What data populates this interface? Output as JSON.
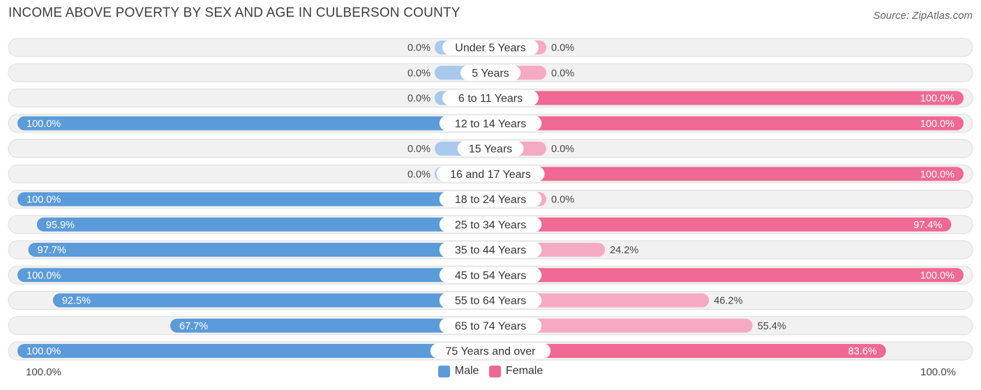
{
  "header": {
    "title": "INCOME ABOVE POVERTY BY SEX AND AGE IN CULBERSON COUNTY",
    "source": "Source: ZipAtlas.com"
  },
  "colors": {
    "male_strong": "#5b9bd9",
    "male_light": "#a9c9ec",
    "female_strong": "#f06894",
    "female_light": "#f6a9c3",
    "row_bg": "#f1f1f1",
    "row_border": "#dedede"
  },
  "chart_data": {
    "type": "bar",
    "orientation": "horizontal-diverging",
    "title": "INCOME ABOVE POVERTY BY SEX AND AGE IN CULBERSON COUNTY",
    "xlim": [
      -100,
      100
    ],
    "categories": [
      "Under 5 Years",
      "5 Years",
      "6 to 11 Years",
      "12 to 14 Years",
      "15 Years",
      "16 and 17 Years",
      "18 to 24 Years",
      "25 to 34 Years",
      "35 to 44 Years",
      "45 to 54 Years",
      "55 to 64 Years",
      "65 to 74 Years",
      "75 Years and over"
    ],
    "series": [
      {
        "name": "Male",
        "values": [
          0.0,
          0.0,
          0.0,
          100.0,
          0.0,
          0.0,
          100.0,
          95.9,
          97.7,
          100.0,
          92.5,
          67.7,
          100.0
        ]
      },
      {
        "name": "Female",
        "values": [
          0.0,
          0.0,
          100.0,
          100.0,
          0.0,
          100.0,
          0.0,
          97.4,
          24.2,
          100.0,
          46.2,
          55.4,
          83.6
        ]
      }
    ],
    "value_labels": {
      "Male": [
        "0.0%",
        "0.0%",
        "0.0%",
        "100.0%",
        "0.0%",
        "0.0%",
        "100.0%",
        "95.9%",
        "97.7%",
        "100.0%",
        "92.5%",
        "67.7%",
        "100.0%"
      ],
      "Female": [
        "0.0%",
        "0.0%",
        "100.0%",
        "100.0%",
        "0.0%",
        "100.0%",
        "0.0%",
        "97.4%",
        "24.2%",
        "100.0%",
        "46.2%",
        "55.4%",
        "83.6%"
      ]
    },
    "axis_labels": {
      "left": "100.0%",
      "right": "100.0%"
    },
    "legend": [
      "Male",
      "Female"
    ],
    "legend_position": "bottom-center"
  }
}
